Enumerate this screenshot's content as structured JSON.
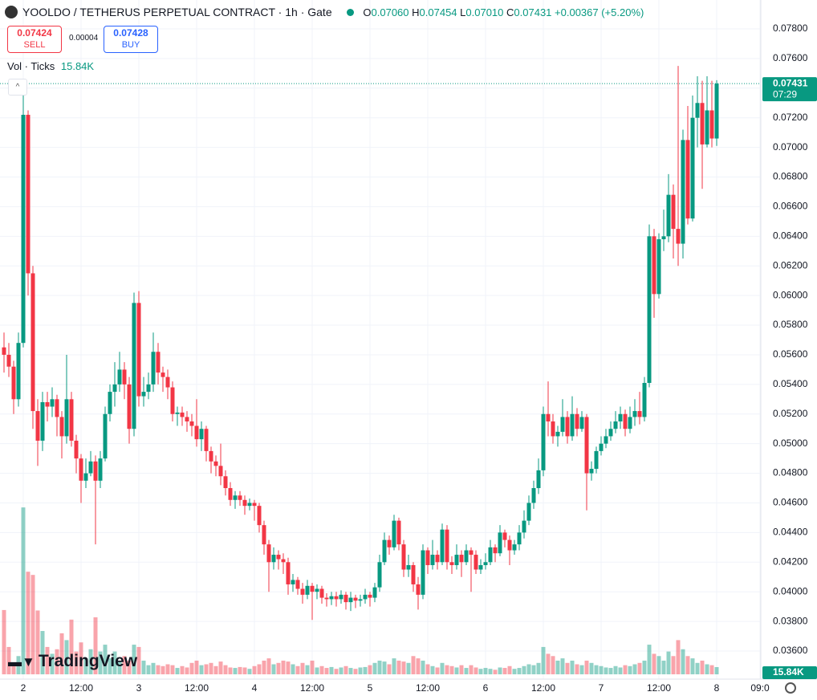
{
  "chart_data": {
    "type": "candlestick",
    "symbol": "YOOLDO / TETHERUS PERPETUAL CONTRACT · 1h · Gate",
    "legend_ohlc": [
      {
        "label": "O",
        "value": "0.07060"
      },
      {
        "label": "H",
        "value": "0.07454"
      },
      {
        "label": "L",
        "value": "0.07010"
      },
      {
        "label": "C",
        "value": "0.07431"
      }
    ],
    "change": "+0.00367 (+5.20%)",
    "sell": {
      "price": "0.07424",
      "label": "SELL"
    },
    "spread": "0.00004",
    "buy": {
      "price": "0.07428",
      "label": "BUY"
    },
    "volume_label": "Vol · Ticks",
    "volume_value_label": "15.84K",
    "last_price_label": "0.07431",
    "countdown": "07:29",
    "last_volume_label": "15.84K",
    "logo": "TradingView",
    "up_color": "#089981",
    "down_color": "#f23645",
    "ylim": [
      0.036,
      0.078
    ],
    "yticks": [
      {
        "value": 0.036,
        "label": "0.03600"
      },
      {
        "value": 0.038,
        "label": "0.03800"
      },
      {
        "value": 0.04,
        "label": "0.04000"
      },
      {
        "value": 0.042,
        "label": "0.04200"
      },
      {
        "value": 0.044,
        "label": "0.04400"
      },
      {
        "value": 0.046,
        "label": "0.04600"
      },
      {
        "value": 0.048,
        "label": "0.04800"
      },
      {
        "value": 0.05,
        "label": "0.05000"
      },
      {
        "value": 0.052,
        "label": "0.05200"
      },
      {
        "value": 0.054,
        "label": "0.05400"
      },
      {
        "value": 0.056,
        "label": "0.05600"
      },
      {
        "value": 0.058,
        "label": "0.05800"
      },
      {
        "value": 0.06,
        "label": "0.06000"
      },
      {
        "value": 0.062,
        "label": "0.06200"
      },
      {
        "value": 0.064,
        "label": "0.06400"
      },
      {
        "value": 0.066,
        "label": "0.06600"
      },
      {
        "value": 0.068,
        "label": "0.06800"
      },
      {
        "value": 0.07,
        "label": "0.07000"
      },
      {
        "value": 0.072,
        "label": "0.07200"
      },
      {
        "value": 0.074,
        "label": "0.07400"
      },
      {
        "value": 0.076,
        "label": "0.07600"
      },
      {
        "value": 0.078,
        "label": "0.07800"
      }
    ],
    "xticks": [
      {
        "value": 4,
        "label": "2"
      },
      {
        "value": 16,
        "label": "12:00"
      },
      {
        "value": 28,
        "label": "3"
      },
      {
        "value": 40,
        "label": "12:00"
      },
      {
        "value": 52,
        "label": "4"
      },
      {
        "value": 64,
        "label": "12:00"
      },
      {
        "value": 76,
        "label": "5"
      },
      {
        "value": 88,
        "label": "12:00"
      },
      {
        "value": 100,
        "label": "6"
      },
      {
        "value": 112,
        "label": "12:00"
      },
      {
        "value": 124,
        "label": "7"
      },
      {
        "value": 136,
        "label": "12:00"
      },
      {
        "value": 148,
        "label": "8"
      },
      {
        "value": 157,
        "label": "09:0"
      }
    ],
    "grid": true,
    "volume_ylim": [
      0,
      500
    ],
    "ohlc": [
      [
        0.0565,
        0.0575,
        0.0548,
        0.056
      ],
      [
        0.056,
        0.0568,
        0.0545,
        0.0552
      ],
      [
        0.0552,
        0.0556,
        0.052,
        0.053
      ],
      [
        0.053,
        0.0575,
        0.0525,
        0.0568
      ],
      [
        0.0568,
        0.0745,
        0.0565,
        0.0722
      ],
      [
        0.0722,
        0.0725,
        0.06,
        0.0615
      ],
      [
        0.0615,
        0.062,
        0.051,
        0.0522
      ],
      [
        0.0522,
        0.053,
        0.0485,
        0.0502
      ],
      [
        0.0502,
        0.0535,
        0.0495,
        0.0528
      ],
      [
        0.0528,
        0.0535,
        0.0515,
        0.0525
      ],
      [
        0.0525,
        0.0538,
        0.0518,
        0.053
      ],
      [
        0.053,
        0.0533,
        0.0505,
        0.0518
      ],
      [
        0.0518,
        0.0522,
        0.049,
        0.0505
      ],
      [
        0.0505,
        0.056,
        0.05,
        0.053
      ],
      [
        0.053,
        0.0535,
        0.0498,
        0.0502
      ],
      [
        0.0502,
        0.0506,
        0.048,
        0.049
      ],
      [
        0.049,
        0.0493,
        0.046,
        0.0475
      ],
      [
        0.0475,
        0.049,
        0.047,
        0.048
      ],
      [
        0.048,
        0.0495,
        0.0478,
        0.0488
      ],
      [
        0.0488,
        0.0492,
        0.0432,
        0.0475
      ],
      [
        0.0475,
        0.0495,
        0.047,
        0.049
      ],
      [
        0.049,
        0.0525,
        0.0488,
        0.052
      ],
      [
        0.052,
        0.054,
        0.0515,
        0.0535
      ],
      [
        0.0535,
        0.0555,
        0.0525,
        0.054
      ],
      [
        0.054,
        0.0562,
        0.0535,
        0.055
      ],
      [
        0.055,
        0.0555,
        0.053,
        0.054
      ],
      [
        0.054,
        0.0545,
        0.05,
        0.051
      ],
      [
        0.051,
        0.0602,
        0.0505,
        0.0595
      ],
      [
        0.0595,
        0.0603,
        0.0525,
        0.0532
      ],
      [
        0.0532,
        0.0545,
        0.0525,
        0.0535
      ],
      [
        0.0535,
        0.0548,
        0.053,
        0.054
      ],
      [
        0.054,
        0.0575,
        0.0535,
        0.0562
      ],
      [
        0.0562,
        0.0568,
        0.054,
        0.0548
      ],
      [
        0.0548,
        0.0552,
        0.0535,
        0.0545
      ],
      [
        0.0545,
        0.055,
        0.053,
        0.0538
      ],
      [
        0.0538,
        0.0542,
        0.0515,
        0.052
      ],
      [
        0.052,
        0.0525,
        0.0512,
        0.0521
      ],
      [
        0.0521,
        0.0525,
        0.0512,
        0.0518
      ],
      [
        0.0518,
        0.0522,
        0.0508,
        0.0515
      ],
      [
        0.0515,
        0.052,
        0.0505,
        0.0512
      ],
      [
        0.0512,
        0.053,
        0.0498,
        0.0503
      ],
      [
        0.0503,
        0.0515,
        0.0495,
        0.051
      ],
      [
        0.051,
        0.0512,
        0.0488,
        0.0495
      ],
      [
        0.0495,
        0.0498,
        0.048,
        0.0488
      ],
      [
        0.0488,
        0.0492,
        0.0478,
        0.0485
      ],
      [
        0.0485,
        0.05,
        0.0472,
        0.0478
      ],
      [
        0.0478,
        0.0482,
        0.0465,
        0.047
      ],
      [
        0.047,
        0.0474,
        0.0458,
        0.0462
      ],
      [
        0.0462,
        0.0468,
        0.0456,
        0.0465
      ],
      [
        0.0465,
        0.0468,
        0.0458,
        0.0462
      ],
      [
        0.0462,
        0.0465,
        0.0452,
        0.0458
      ],
      [
        0.0458,
        0.0463,
        0.0455,
        0.046
      ],
      [
        0.046,
        0.0462,
        0.0448,
        0.0458
      ],
      [
        0.0458,
        0.046,
        0.044,
        0.0445
      ],
      [
        0.0445,
        0.0448,
        0.0425,
        0.0432
      ],
      [
        0.0432,
        0.0435,
        0.04,
        0.042
      ],
      [
        0.042,
        0.043,
        0.0415,
        0.0425
      ],
      [
        0.0425,
        0.0428,
        0.0415,
        0.0422
      ],
      [
        0.0422,
        0.0426,
        0.0412,
        0.042
      ],
      [
        0.042,
        0.0423,
        0.0398,
        0.0405
      ],
      [
        0.0405,
        0.0412,
        0.04,
        0.0408
      ],
      [
        0.0408,
        0.041,
        0.0398,
        0.0402
      ],
      [
        0.0402,
        0.0406,
        0.0392,
        0.0398
      ],
      [
        0.0398,
        0.0408,
        0.0395,
        0.0404
      ],
      [
        0.0404,
        0.0406,
        0.0381,
        0.04
      ],
      [
        0.04,
        0.0405,
        0.0395,
        0.0402
      ],
      [
        0.0402,
        0.0404,
        0.0392,
        0.0396
      ],
      [
        0.0396,
        0.0399,
        0.039,
        0.0395
      ],
      [
        0.0395,
        0.04,
        0.0391,
        0.0397
      ],
      [
        0.0397,
        0.04,
        0.039,
        0.0395
      ],
      [
        0.0395,
        0.0401,
        0.0392,
        0.0398
      ],
      [
        0.0398,
        0.04,
        0.0388,
        0.0393
      ],
      [
        0.0393,
        0.04,
        0.0387,
        0.0396
      ],
      [
        0.0396,
        0.0398,
        0.0389,
        0.0394
      ],
      [
        0.0394,
        0.0398,
        0.039,
        0.0395
      ],
      [
        0.0395,
        0.0402,
        0.0392,
        0.0398
      ],
      [
        0.0398,
        0.04,
        0.039,
        0.0396
      ],
      [
        0.0396,
        0.0406,
        0.0393,
        0.0403
      ],
      [
        0.0403,
        0.0425,
        0.04,
        0.042
      ],
      [
        0.042,
        0.044,
        0.0418,
        0.0435
      ],
      [
        0.0435,
        0.0438,
        0.0425,
        0.043
      ],
      [
        0.043,
        0.0452,
        0.0428,
        0.0448
      ],
      [
        0.0448,
        0.045,
        0.0428,
        0.0432
      ],
      [
        0.0432,
        0.0435,
        0.041,
        0.0415
      ],
      [
        0.0415,
        0.0425,
        0.041,
        0.0418
      ],
      [
        0.0418,
        0.042,
        0.04,
        0.0405
      ],
      [
        0.0405,
        0.041,
        0.0388,
        0.0398
      ],
      [
        0.0398,
        0.0432,
        0.0395,
        0.0428
      ],
      [
        0.0428,
        0.043,
        0.0412,
        0.0418
      ],
      [
        0.0418,
        0.0435,
        0.0415,
        0.0425
      ],
      [
        0.0425,
        0.0428,
        0.0415,
        0.042
      ],
      [
        0.042,
        0.0446,
        0.0418,
        0.0442
      ],
      [
        0.0442,
        0.0445,
        0.0415,
        0.042
      ],
      [
        0.042,
        0.0424,
        0.0412,
        0.0418
      ],
      [
        0.0418,
        0.0432,
        0.0415,
        0.0425
      ],
      [
        0.0425,
        0.0428,
        0.041,
        0.042
      ],
      [
        0.042,
        0.0432,
        0.0418,
        0.0428
      ],
      [
        0.0428,
        0.043,
        0.04,
        0.0425
      ],
      [
        0.0425,
        0.0428,
        0.0412,
        0.0415
      ],
      [
        0.0415,
        0.0422,
        0.0412,
        0.0418
      ],
      [
        0.0418,
        0.0426,
        0.0415,
        0.042
      ],
      [
        0.042,
        0.0435,
        0.0418,
        0.043
      ],
      [
        0.043,
        0.0432,
        0.042,
        0.0426
      ],
      [
        0.0426,
        0.0445,
        0.0424,
        0.044
      ],
      [
        0.044,
        0.0442,
        0.043,
        0.0435
      ],
      [
        0.0435,
        0.0438,
        0.0418,
        0.0428
      ],
      [
        0.0428,
        0.0435,
        0.0425,
        0.0432
      ],
      [
        0.0432,
        0.0445,
        0.0428,
        0.044
      ],
      [
        0.044,
        0.0455,
        0.0436,
        0.0448
      ],
      [
        0.0448,
        0.0465,
        0.0445,
        0.046
      ],
      [
        0.046,
        0.0475,
        0.0456,
        0.047
      ],
      [
        0.047,
        0.049,
        0.0466,
        0.0482
      ],
      [
        0.0482,
        0.0525,
        0.0478,
        0.052
      ],
      [
        0.052,
        0.0542,
        0.0505,
        0.0515
      ],
      [
        0.0515,
        0.052,
        0.05,
        0.0505
      ],
      [
        0.0505,
        0.0512,
        0.0498,
        0.0508
      ],
      [
        0.0508,
        0.053,
        0.0505,
        0.0518
      ],
      [
        0.0518,
        0.0522,
        0.05,
        0.0505
      ],
      [
        0.0505,
        0.0532,
        0.0502,
        0.052
      ],
      [
        0.052,
        0.0524,
        0.0505,
        0.051
      ],
      [
        0.051,
        0.0522,
        0.0508,
        0.0518
      ],
      [
        0.0518,
        0.052,
        0.0455,
        0.048
      ],
      [
        0.048,
        0.0488,
        0.0475,
        0.0483
      ],
      [
        0.0483,
        0.0498,
        0.048,
        0.0495
      ],
      [
        0.0495,
        0.0505,
        0.0492,
        0.05
      ],
      [
        0.05,
        0.051,
        0.0497,
        0.0505
      ],
      [
        0.0505,
        0.0515,
        0.0502,
        0.051
      ],
      [
        0.051,
        0.0522,
        0.0507,
        0.0515
      ],
      [
        0.0515,
        0.0525,
        0.051,
        0.052
      ],
      [
        0.052,
        0.0523,
        0.0505,
        0.051
      ],
      [
        0.051,
        0.0525,
        0.0507,
        0.0518
      ],
      [
        0.0518,
        0.053,
        0.0512,
        0.0522
      ],
      [
        0.0522,
        0.0535,
        0.0513,
        0.0518
      ],
      [
        0.0518,
        0.0545,
        0.0515,
        0.0541
      ],
      [
        0.0541,
        0.0648,
        0.0538,
        0.064
      ],
      [
        0.064,
        0.0645,
        0.0585,
        0.0601
      ],
      [
        0.0601,
        0.0642,
        0.0598,
        0.0638
      ],
      [
        0.0638,
        0.0658,
        0.063,
        0.064
      ],
      [
        0.064,
        0.0682,
        0.0636,
        0.0668
      ],
      [
        0.0668,
        0.0675,
        0.0625,
        0.0645
      ],
      [
        0.0645,
        0.0755,
        0.062,
        0.0635
      ],
      [
        0.0635,
        0.0712,
        0.0625,
        0.0705
      ],
      [
        0.0705,
        0.0728,
        0.0648,
        0.0652
      ],
      [
        0.0652,
        0.0735,
        0.065,
        0.072
      ],
      [
        0.072,
        0.0748,
        0.07,
        0.073
      ],
      [
        0.073,
        0.0745,
        0.0672,
        0.0702
      ],
      [
        0.0702,
        0.0748,
        0.07,
        0.0725
      ],
      [
        0.0725,
        0.0745,
        0.07,
        0.0706
      ],
      [
        0.0706,
        0.07454,
        0.0701,
        0.07431
      ]
    ],
    "volume": [
      141,
      60,
      25,
      40,
      366,
      225,
      218,
      140,
      95,
      60,
      45,
      55,
      90,
      75,
      120,
      50,
      70,
      35,
      55,
      125,
      50,
      65,
      35,
      50,
      30,
      40,
      30,
      65,
      60,
      30,
      20,
      25,
      20,
      18,
      22,
      20,
      14,
      18,
      15,
      25,
      30,
      20,
      22,
      25,
      18,
      28,
      20,
      15,
      14,
      16,
      15,
      12,
      18,
      22,
      30,
      35,
      22,
      25,
      30,
      28,
      22,
      18,
      25,
      20,
      30,
      15,
      18,
      14,
      16,
      12,
      15,
      18,
      14,
      12,
      15,
      16,
      20,
      25,
      30,
      28,
      22,
      35,
      30,
      28,
      25,
      40,
      35,
      30,
      22,
      18,
      15,
      25,
      20,
      18,
      15,
      20,
      14,
      20,
      15,
      12,
      14,
      12,
      10,
      15,
      14,
      18,
      12,
      14,
      18,
      22,
      20,
      25,
      60,
      45,
      40,
      30,
      35,
      25,
      30,
      22,
      20,
      30,
      25,
      20,
      18,
      15,
      14,
      18,
      15,
      20,
      18,
      22,
      25,
      30,
      65,
      45,
      40,
      30,
      50,
      40,
      75,
      55,
      40,
      35,
      25,
      30,
      22,
      20,
      15.84
    ]
  }
}
